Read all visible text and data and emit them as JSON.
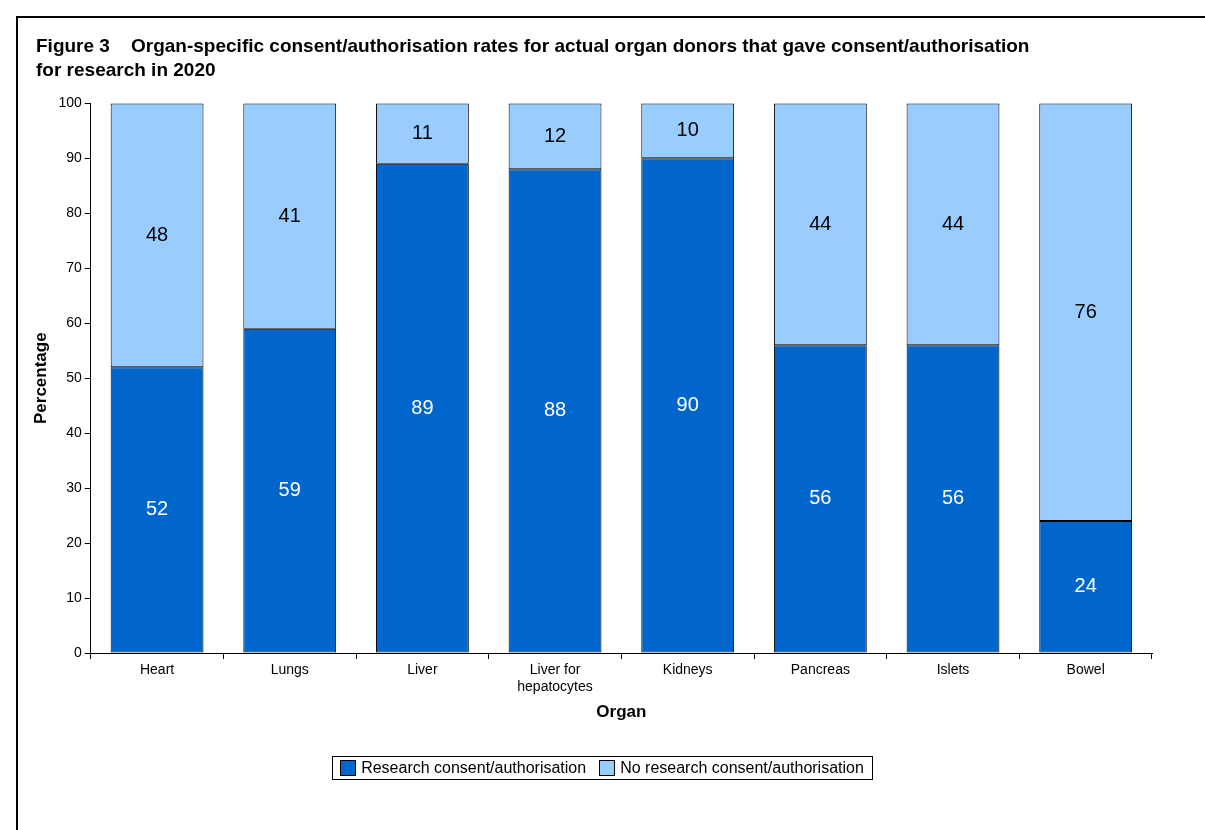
{
  "chart_data": {
    "type": "bar",
    "title": "Figure 3    Organ-specific consent/authorisation rates for actual organ donors that gave consent/authorisation for research in 2020",
    "xlabel": "Organ",
    "ylabel": "Percentage",
    "categories": [
      "Heart",
      "Lungs",
      "Liver",
      "Liver for hepatocytes",
      "Kidneys",
      "Pancreas",
      "Islets",
      "Bowel"
    ],
    "series": [
      {
        "name": "Research consent/authorisation",
        "color": "#0066cc",
        "values": [
          52,
          59,
          89,
          88,
          90,
          56,
          56,
          24
        ]
      },
      {
        "name": "No research consent/authorisation",
        "color": "#99ccff",
        "values": [
          48,
          41,
          11,
          12,
          10,
          44,
          44,
          76
        ]
      }
    ],
    "stacked": true,
    "ylim": [
      0,
      100
    ],
    "yticks": [
      0,
      10,
      20,
      30,
      40,
      50,
      60,
      70,
      80,
      90,
      100
    ],
    "grid": false,
    "legend": "bottom",
    "data_labels": true
  }
}
